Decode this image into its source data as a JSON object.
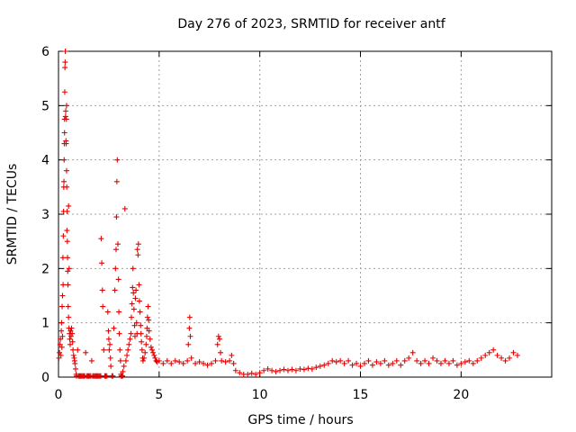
{
  "chart_data": {
    "type": "scatter",
    "title": "Day 276 of 2023, SRMTID for receiver antf",
    "xlabel": "GPS time / hours",
    "ylabel": "SRMTID / TECUs",
    "xlim": [
      0,
      24.5
    ],
    "ylim": [
      0,
      6
    ],
    "xticks": [
      0,
      5,
      10,
      15,
      20
    ],
    "yticks": [
      0,
      1,
      2,
      3,
      4,
      5,
      6
    ],
    "grid": true,
    "marker": "+",
    "color": "#e60000",
    "series": [
      {
        "name": "SRMTID",
        "points": [
          [
            0.02,
            0.35
          ],
          [
            0.05,
            0.45
          ],
          [
            0.08,
            0.6
          ],
          [
            0.1,
            0.7
          ],
          [
            0.12,
            0.4
          ],
          [
            0.14,
            0.85
          ],
          [
            0.15,
            1.0
          ],
          [
            0.17,
            0.55
          ],
          [
            0.18,
            1.3
          ],
          [
            0.2,
            1.5
          ],
          [
            0.2,
            0.75
          ],
          [
            0.22,
            2.2
          ],
          [
            0.23,
            1.7
          ],
          [
            0.24,
            2.6
          ],
          [
            0.25,
            3.05
          ],
          [
            0.26,
            3.5
          ],
          [
            0.27,
            3.6
          ],
          [
            0.28,
            4.0
          ],
          [
            0.29,
            4.3
          ],
          [
            0.3,
            4.5
          ],
          [
            0.3,
            4.75
          ],
          [
            0.31,
            5.25
          ],
          [
            0.32,
            5.7
          ],
          [
            0.33,
            5.8
          ],
          [
            0.34,
            6.0
          ],
          [
            0.35,
            4.8
          ],
          [
            0.36,
            4.9
          ],
          [
            0.37,
            4.35
          ],
          [
            0.38,
            4.3
          ],
          [
            0.39,
            4.75
          ],
          [
            0.4,
            5.0
          ],
          [
            0.4,
            3.8
          ],
          [
            0.41,
            3.5
          ],
          [
            0.42,
            2.7
          ],
          [
            0.43,
            3.05
          ],
          [
            0.44,
            2.5
          ],
          [
            0.45,
            2.2
          ],
          [
            0.46,
            1.95
          ],
          [
            0.47,
            1.7
          ],
          [
            0.48,
            1.3
          ],
          [
            0.5,
            3.15
          ],
          [
            0.5,
            1.1
          ],
          [
            0.52,
            0.9
          ],
          [
            0.53,
            2.0
          ],
          [
            0.55,
            0.8
          ],
          [
            0.56,
            0.7
          ],
          [
            0.58,
            0.6
          ],
          [
            0.6,
            0.85
          ],
          [
            0.62,
            0.75
          ],
          [
            0.65,
            0.9
          ],
          [
            0.68,
            0.8
          ],
          [
            0.7,
            0.65
          ],
          [
            0.72,
            0.5
          ],
          [
            0.75,
            0.4
          ],
          [
            0.78,
            0.35
          ],
          [
            0.8,
            0.3
          ],
          [
            0.82,
            0.25
          ],
          [
            0.85,
            0.15
          ],
          [
            0.88,
            0.05
          ],
          [
            0.9,
            0.02
          ],
          [
            0.95,
            0.5
          ],
          [
            1.0,
            0.02
          ],
          [
            1.05,
            0.02
          ],
          [
            1.1,
            0.02
          ],
          [
            1.15,
            0.02
          ],
          [
            1.2,
            0.02
          ],
          [
            1.25,
            0.02
          ],
          [
            1.3,
            0.02
          ],
          [
            1.35,
            0.45
          ],
          [
            1.4,
            0.02
          ],
          [
            1.45,
            0.02
          ],
          [
            1.5,
            0.02
          ],
          [
            1.55,
            0.02
          ],
          [
            1.6,
            0.02
          ],
          [
            1.65,
            0.3
          ],
          [
            1.7,
            0.02
          ],
          [
            1.75,
            0.02
          ],
          [
            1.8,
            0.02
          ],
          [
            1.85,
            0.02
          ],
          [
            1.9,
            0.02
          ],
          [
            1.95,
            0.02
          ],
          [
            2.0,
            0.02
          ],
          [
            2.05,
            0.02
          ],
          [
            2.1,
            0.02
          ],
          [
            2.12,
            2.55
          ],
          [
            2.15,
            2.1
          ],
          [
            2.18,
            1.6
          ],
          [
            2.2,
            1.3
          ],
          [
            2.25,
            0.5
          ],
          [
            2.3,
            0.02
          ],
          [
            2.35,
            0.02
          ],
          [
            2.4,
            0.02
          ],
          [
            2.45,
            1.2
          ],
          [
            2.48,
            0.85
          ],
          [
            2.5,
            0.7
          ],
          [
            2.52,
            0.5
          ],
          [
            2.55,
            0.6
          ],
          [
            2.58,
            0.35
          ],
          [
            2.6,
            0.2
          ],
          [
            2.65,
            0.02
          ],
          [
            2.7,
            0.02
          ],
          [
            2.75,
            0.9
          ],
          [
            2.8,
            1.6
          ],
          [
            2.83,
            2.0
          ],
          [
            2.86,
            2.35
          ],
          [
            2.88,
            2.95
          ],
          [
            2.9,
            3.6
          ],
          [
            2.92,
            4.0
          ],
          [
            2.95,
            2.45
          ],
          [
            2.98,
            1.8
          ],
          [
            3.0,
            1.2
          ],
          [
            3.02,
            0.8
          ],
          [
            3.05,
            0.5
          ],
          [
            3.08,
            0.3
          ],
          [
            3.1,
            0.05
          ],
          [
            3.12,
            0.02
          ],
          [
            3.15,
            0.02
          ],
          [
            3.18,
            0.02
          ],
          [
            3.2,
            0.1
          ],
          [
            3.25,
            0.2
          ],
          [
            3.3,
            3.1
          ],
          [
            3.35,
            0.3
          ],
          [
            3.4,
            0.4
          ],
          [
            3.45,
            0.5
          ],
          [
            3.5,
            0.6
          ],
          [
            3.55,
            0.7
          ],
          [
            3.6,
            0.8
          ],
          [
            3.62,
            1.1
          ],
          [
            3.65,
            1.35
          ],
          [
            3.68,
            1.65
          ],
          [
            3.7,
            2.0
          ],
          [
            3.72,
            1.55
          ],
          [
            3.75,
            1.25
          ],
          [
            3.78,
            0.95
          ],
          [
            3.8,
            0.75
          ],
          [
            3.82,
            1.45
          ],
          [
            3.85,
            1.6
          ],
          [
            3.88,
            1.0
          ],
          [
            3.9,
            0.8
          ],
          [
            3.92,
            2.35
          ],
          [
            3.95,
            2.25
          ],
          [
            3.97,
            2.45
          ],
          [
            4.0,
            1.7
          ],
          [
            4.02,
            1.4
          ],
          [
            4.05,
            1.2
          ],
          [
            4.08,
            0.95
          ],
          [
            4.1,
            0.8
          ],
          [
            4.12,
            0.65
          ],
          [
            4.15,
            0.5
          ],
          [
            4.18,
            0.35
          ],
          [
            4.2,
            0.3
          ],
          [
            4.25,
            0.35
          ],
          [
            4.3,
            0.45
          ],
          [
            4.35,
            0.6
          ],
          [
            4.38,
            0.75
          ],
          [
            4.4,
            0.9
          ],
          [
            4.42,
            1.1
          ],
          [
            4.45,
            1.3
          ],
          [
            4.48,
            1.05
          ],
          [
            4.5,
            0.85
          ],
          [
            4.55,
            0.7
          ],
          [
            4.6,
            0.55
          ],
          [
            4.65,
            0.5
          ],
          [
            4.7,
            0.45
          ],
          [
            4.75,
            0.4
          ],
          [
            4.8,
            0.35
          ],
          [
            4.85,
            0.3
          ],
          [
            4.9,
            0.28
          ],
          [
            5.0,
            0.3
          ],
          [
            5.2,
            0.25
          ],
          [
            5.4,
            0.3
          ],
          [
            5.6,
            0.25
          ],
          [
            5.8,
            0.3
          ],
          [
            6.0,
            0.28
          ],
          [
            6.2,
            0.25
          ],
          [
            6.4,
            0.3
          ],
          [
            6.45,
            0.6
          ],
          [
            6.5,
            0.9
          ],
          [
            6.52,
            1.1
          ],
          [
            6.55,
            0.75
          ],
          [
            6.6,
            0.35
          ],
          [
            6.8,
            0.25
          ],
          [
            7.0,
            0.28
          ],
          [
            7.2,
            0.25
          ],
          [
            7.4,
            0.22
          ],
          [
            7.6,
            0.25
          ],
          [
            7.8,
            0.3
          ],
          [
            7.9,
            0.6
          ],
          [
            7.95,
            0.75
          ],
          [
            8.0,
            0.7
          ],
          [
            8.05,
            0.45
          ],
          [
            8.1,
            0.3
          ],
          [
            8.3,
            0.28
          ],
          [
            8.5,
            0.3
          ],
          [
            8.6,
            0.4
          ],
          [
            8.7,
            0.25
          ],
          [
            8.8,
            0.12
          ],
          [
            9.0,
            0.08
          ],
          [
            9.2,
            0.05
          ],
          [
            9.4,
            0.05
          ],
          [
            9.6,
            0.07
          ],
          [
            9.8,
            0.05
          ],
          [
            10.0,
            0.08
          ],
          [
            10.2,
            0.12
          ],
          [
            10.4,
            0.15
          ],
          [
            10.6,
            0.12
          ],
          [
            10.8,
            0.1
          ],
          [
            11.0,
            0.12
          ],
          [
            11.2,
            0.14
          ],
          [
            11.4,
            0.12
          ],
          [
            11.6,
            0.14
          ],
          [
            11.8,
            0.12
          ],
          [
            12.0,
            0.15
          ],
          [
            12.2,
            0.14
          ],
          [
            12.4,
            0.16
          ],
          [
            12.6,
            0.15
          ],
          [
            12.8,
            0.18
          ],
          [
            13.0,
            0.2
          ],
          [
            13.2,
            0.22
          ],
          [
            13.4,
            0.25
          ],
          [
            13.6,
            0.3
          ],
          [
            13.8,
            0.28
          ],
          [
            14.0,
            0.3
          ],
          [
            14.2,
            0.25
          ],
          [
            14.4,
            0.3
          ],
          [
            14.6,
            0.22
          ],
          [
            14.8,
            0.25
          ],
          [
            15.0,
            0.2
          ],
          [
            15.2,
            0.25
          ],
          [
            15.4,
            0.3
          ],
          [
            15.6,
            0.22
          ],
          [
            15.8,
            0.28
          ],
          [
            16.0,
            0.25
          ],
          [
            16.2,
            0.3
          ],
          [
            16.4,
            0.22
          ],
          [
            16.6,
            0.25
          ],
          [
            16.8,
            0.3
          ],
          [
            17.0,
            0.22
          ],
          [
            17.2,
            0.3
          ],
          [
            17.4,
            0.35
          ],
          [
            17.6,
            0.45
          ],
          [
            17.8,
            0.3
          ],
          [
            18.0,
            0.25
          ],
          [
            18.2,
            0.3
          ],
          [
            18.4,
            0.25
          ],
          [
            18.6,
            0.35
          ],
          [
            18.8,
            0.3
          ],
          [
            19.0,
            0.25
          ],
          [
            19.2,
            0.3
          ],
          [
            19.4,
            0.25
          ],
          [
            19.6,
            0.3
          ],
          [
            19.8,
            0.22
          ],
          [
            20.0,
            0.25
          ],
          [
            20.2,
            0.28
          ],
          [
            20.4,
            0.3
          ],
          [
            20.6,
            0.25
          ],
          [
            20.8,
            0.3
          ],
          [
            21.0,
            0.35
          ],
          [
            21.2,
            0.4
          ],
          [
            21.4,
            0.45
          ],
          [
            21.6,
            0.5
          ],
          [
            21.8,
            0.4
          ],
          [
            22.0,
            0.35
          ],
          [
            22.2,
            0.3
          ],
          [
            22.4,
            0.35
          ],
          [
            22.6,
            0.45
          ],
          [
            22.8,
            0.4
          ]
        ]
      }
    ]
  }
}
